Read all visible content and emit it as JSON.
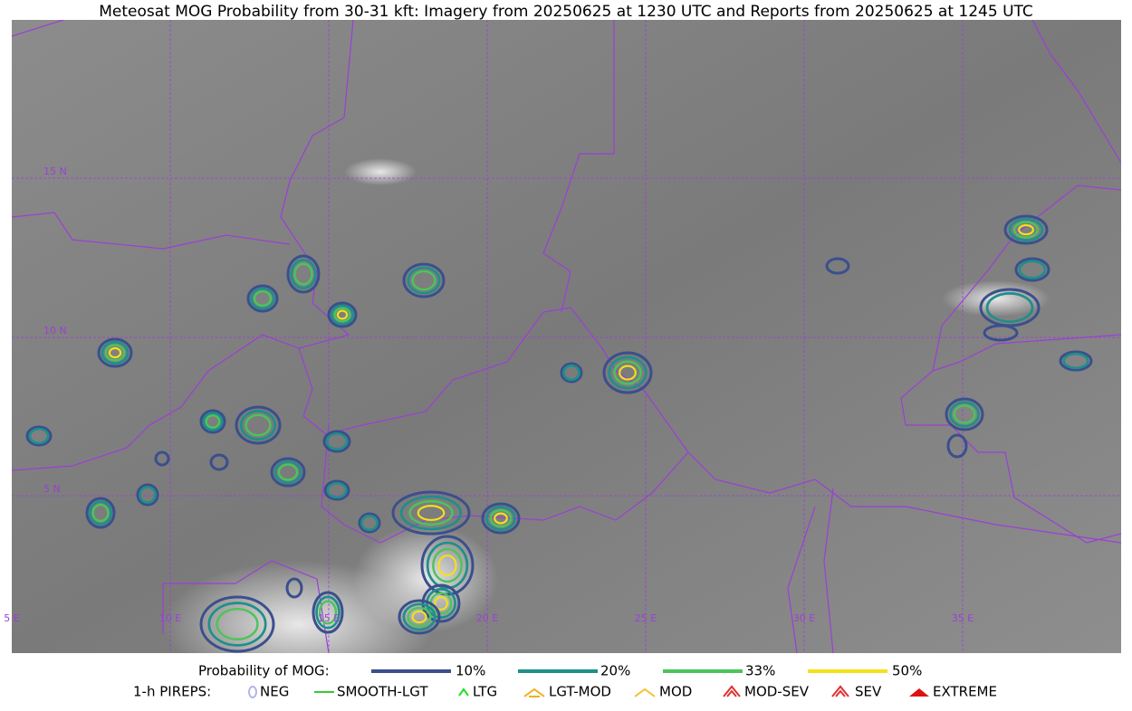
{
  "title": "Meteosat MOG Probability from 30-31 kft: Imagery from 20250625 at 1230 UTC and Reports from 20250625 at 1245 UTC",
  "map": {
    "lat_labels": [
      "15 N",
      "10 N",
      "5 N"
    ],
    "lon_labels": [
      "5 E",
      "10 E",
      "15 E",
      "20 E",
      "25 E",
      "30 E",
      "35 E"
    ]
  },
  "legend": {
    "probability": {
      "label": "Probability of MOG:",
      "items": [
        {
          "label": "10%",
          "color": "#3b4f8c"
        },
        {
          "label": "20%",
          "color": "#1f8f8a"
        },
        {
          "label": "33%",
          "color": "#4cc45a"
        },
        {
          "label": "50%",
          "color": "#f5e11a"
        }
      ]
    },
    "pireps": {
      "label": "1-h PIREPS:",
      "items": [
        {
          "label": "NEG",
          "color": "#b3b3f0"
        },
        {
          "label": "SMOOTH-LGT",
          "color": "#33cc33"
        },
        {
          "label": "LTG",
          "color": "#22dd22"
        },
        {
          "label": "LGT-MOD",
          "color": "#f0b020"
        },
        {
          "label": "MOD",
          "color": "#f5c030"
        },
        {
          "label": "MOD-SEV",
          "color": "#e03030"
        },
        {
          "label": "SEV",
          "color": "#e03030"
        },
        {
          "label": "EXTREME",
          "color": "#e01010"
        }
      ]
    }
  }
}
